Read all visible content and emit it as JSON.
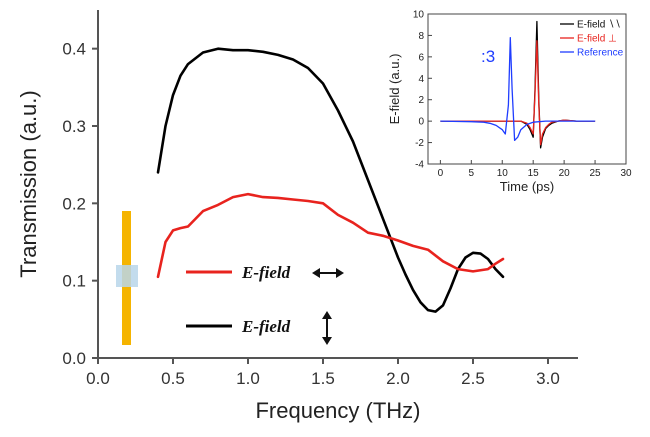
{
  "chart_data": [
    {
      "type": "line",
      "xlabel": "Frequency (THz)",
      "ylabel": "Transmission (a.u.)",
      "xlim": [
        0.0,
        3.2
      ],
      "ylim": [
        0.0,
        0.45
      ],
      "xticks": [
        "0.0",
        "0.5",
        "1.0",
        "1.5",
        "2.0",
        "2.5",
        "3.0"
      ],
      "yticks": [
        "0.0",
        "0.1",
        "0.2",
        "0.3",
        "0.4"
      ],
      "series": [
        {
          "name": "E-field",
          "legend_arrow": "↕",
          "color": "#000000",
          "x": [
            0.4,
            0.45,
            0.5,
            0.55,
            0.6,
            0.7,
            0.8,
            0.9,
            1.0,
            1.1,
            1.2,
            1.3,
            1.4,
            1.5,
            1.6,
            1.7,
            1.8,
            1.9,
            2.0,
            2.05,
            2.1,
            2.15,
            2.2,
            2.25,
            2.3,
            2.35,
            2.4,
            2.45,
            2.5,
            2.55,
            2.6,
            2.65,
            2.7
          ],
          "y": [
            0.24,
            0.3,
            0.34,
            0.365,
            0.38,
            0.395,
            0.4,
            0.398,
            0.398,
            0.396,
            0.392,
            0.386,
            0.375,
            0.355,
            0.32,
            0.28,
            0.23,
            0.18,
            0.13,
            0.108,
            0.088,
            0.072,
            0.062,
            0.06,
            0.068,
            0.09,
            0.115,
            0.13,
            0.136,
            0.135,
            0.128,
            0.115,
            0.105
          ]
        },
        {
          "name": "E-field",
          "legend_arrow": "↔",
          "color": "#e8231e",
          "x": [
            0.4,
            0.45,
            0.5,
            0.55,
            0.6,
            0.7,
            0.8,
            0.9,
            1.0,
            1.1,
            1.2,
            1.3,
            1.4,
            1.5,
            1.6,
            1.7,
            1.8,
            1.9,
            2.0,
            2.1,
            2.2,
            2.3,
            2.4,
            2.5,
            2.6,
            2.65,
            2.7
          ],
          "y": [
            0.105,
            0.15,
            0.165,
            0.168,
            0.17,
            0.19,
            0.198,
            0.208,
            0.212,
            0.208,
            0.207,
            0.205,
            0.203,
            0.2,
            0.185,
            0.175,
            0.162,
            0.158,
            0.152,
            0.145,
            0.14,
            0.125,
            0.115,
            0.112,
            0.115,
            0.122,
            0.128
          ]
        }
      ]
    },
    {
      "type": "line",
      "xlabel": "Time (ps)",
      "ylabel": "E-field (a.u.)",
      "xlim": [
        -2,
        30
      ],
      "ylim": [
        -4,
        10
      ],
      "xticks": [
        "0",
        "5",
        "10",
        "15",
        "20",
        "25",
        "30"
      ],
      "yticks": [
        "-4",
        "-2",
        "0",
        "2",
        "4",
        "6",
        "8",
        "10"
      ],
      "annotation": ":3",
      "series": [
        {
          "name": "E-field ∖∖",
          "color": "#000000",
          "x": [
            0,
            13,
            14,
            14.5,
            15,
            15.3,
            15.6,
            15.9,
            16.2,
            16.5,
            17,
            17.5,
            18,
            19,
            20,
            22,
            25
          ],
          "y": [
            0,
            0,
            -0.3,
            -0.8,
            -1.5,
            3,
            9.3,
            2,
            -2.5,
            -1.5,
            -0.7,
            -0.4,
            -0.2,
            0,
            0.1,
            0,
            0
          ]
        },
        {
          "name": "E-field ⊥",
          "color": "#e8231e",
          "x": [
            0,
            13,
            14,
            14.5,
            15,
            15.3,
            15.6,
            15.9,
            16.2,
            16.5,
            17,
            17.5,
            18,
            19,
            20,
            22,
            25
          ],
          "y": [
            0,
            0,
            -0.2,
            -0.6,
            -1.2,
            2.5,
            7.5,
            1.5,
            -2.2,
            -1.2,
            -0.6,
            -0.3,
            -0.1,
            0,
            0.1,
            0,
            0
          ]
        },
        {
          "name": "Reference",
          "color": "#1f3dff",
          "x": [
            0,
            5,
            7,
            8,
            9,
            10,
            10.5,
            11,
            11.3,
            11.6,
            12,
            12.5,
            13,
            14,
            15,
            17,
            20,
            25
          ],
          "y": [
            0,
            -0.05,
            -0.1,
            -0.2,
            -0.4,
            -0.8,
            -1.2,
            1.5,
            7.8,
            3,
            -1.8,
            -1.5,
            -0.8,
            -0.3,
            -0.1,
            0,
            0,
            0
          ]
        }
      ]
    }
  ]
}
